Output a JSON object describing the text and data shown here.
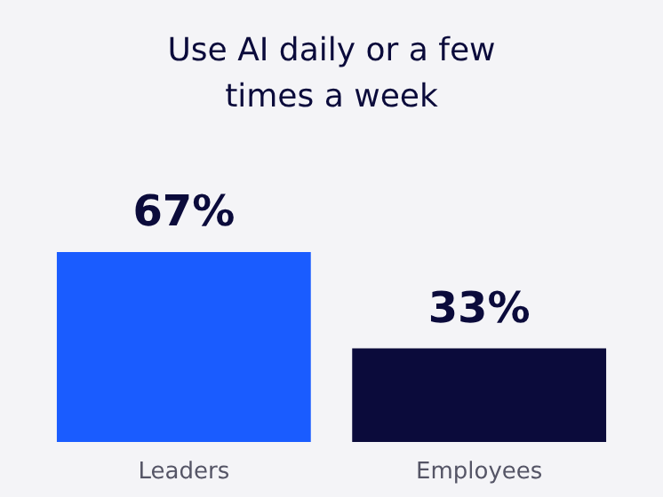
{
  "chart_data": {
    "type": "bar",
    "title": "Use AI daily or a few times a week",
    "categories": [
      "Leaders",
      "Employees"
    ],
    "values": [
      67,
      33
    ],
    "colors": [
      "#1a5cff",
      "#0b0b3b"
    ],
    "value_labels": [
      "67%",
      "33%"
    ],
    "grid": false
  }
}
